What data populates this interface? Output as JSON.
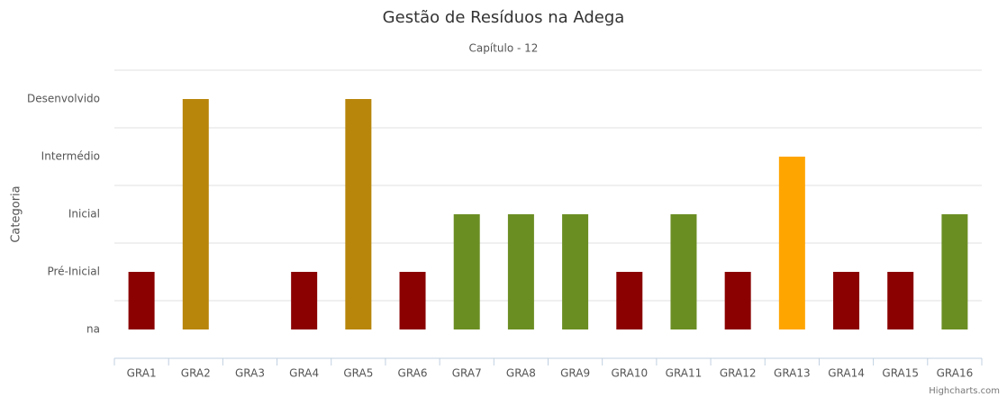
{
  "chart_data": {
    "type": "bar",
    "title": "Gestão de Resíduos na Adega",
    "subtitle": "Capítulo - 12",
    "y_label": "Categoria",
    "credits": "Highcharts.com",
    "categories": [
      "GRA1",
      "GRA2",
      "GRA3",
      "GRA4",
      "GRA5",
      "GRA6",
      "GRA7",
      "GRA8",
      "GRA9",
      "GRA10",
      "GRA11",
      "GRA12",
      "GRA13",
      "GRA14",
      "GRA15",
      "GRA16"
    ],
    "values": [
      1,
      4,
      0,
      1,
      4,
      1,
      2,
      2,
      2,
      1,
      2,
      1,
      3,
      1,
      1,
      2
    ],
    "colors": [
      "#8b0000",
      "#b8860b",
      "#8b0000",
      "#8b0000",
      "#b8860b",
      "#8b0000",
      "#6b8e23",
      "#6b8e23",
      "#6b8e23",
      "#8b0000",
      "#6b8e23",
      "#8b0000",
      "#ffa500",
      "#8b0000",
      "#8b0000",
      "#6b8e23"
    ],
    "ylim": [
      -0.5,
      4.5
    ],
    "yticks": [
      {
        "value": 0,
        "label": "na"
      },
      {
        "value": 1,
        "label": "Pré-Inicial"
      },
      {
        "value": 2,
        "label": "Inicial"
      },
      {
        "value": 3,
        "label": "Intermédio"
      },
      {
        "value": 4,
        "label": "Desenvolvido"
      }
    ],
    "ygrid": [
      -0.5,
      0.5,
      1.5,
      2.5,
      3.5,
      4.5
    ],
    "grid": true
  }
}
